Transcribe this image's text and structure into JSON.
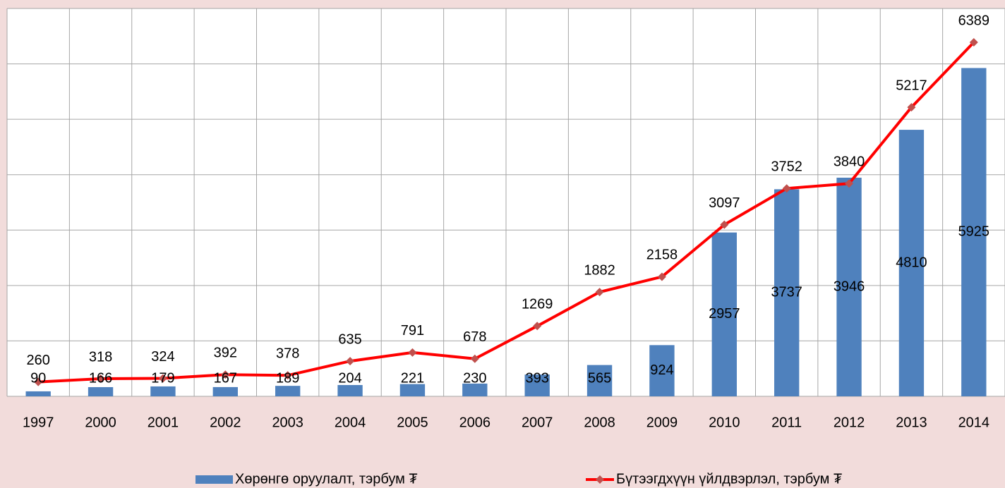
{
  "chart_data": {
    "type": "combo",
    "categories": [
      "1997",
      "2000",
      "2001",
      "2002",
      "2003",
      "2004",
      "2005",
      "2006",
      "2007",
      "2008",
      "2009",
      "2010",
      "2011",
      "2012",
      "2013",
      "2014"
    ],
    "series": [
      {
        "name": "Хөрөнгө оруулалт, тэрбум ₮",
        "type": "bar",
        "color": "#4f81bd",
        "values": [
          90,
          166,
          179,
          167,
          189,
          204,
          221,
          230,
          393,
          565,
          924,
          2957,
          3737,
          3946,
          4810,
          5925
        ]
      },
      {
        "name": "Бүтээгдхүүн үйлдвэрлэл, тэрбум ₮",
        "type": "line",
        "color": "#ff0000",
        "marker_color": "#c0504d",
        "values": [
          260,
          318,
          324,
          392,
          378,
          635,
          791,
          678,
          1269,
          1882,
          2158,
          3097,
          3752,
          3840,
          5217,
          6389
        ]
      }
    ],
    "ylim": [
      0,
      7000
    ],
    "yticks": [
      0,
      1000,
      2000,
      3000,
      4000,
      5000,
      6000,
      7000
    ],
    "grid": true,
    "legend": "bottom"
  }
}
